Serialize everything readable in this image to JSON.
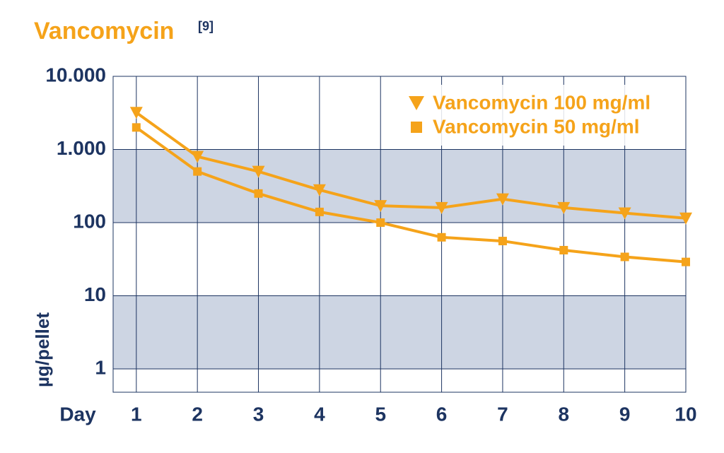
{
  "chart_data": {
    "type": "line",
    "title": "Vancomycin",
    "title_note": "[9]",
    "x_label": "Day",
    "y_label": "µg/pellet",
    "x": [
      1,
      2,
      3,
      4,
      5,
      6,
      7,
      8,
      9,
      10
    ],
    "xlim": [
      0.62,
      10
    ],
    "xticks": [
      1,
      2,
      3,
      4,
      5,
      6,
      7,
      8,
      9,
      10
    ],
    "ylim": [
      0.48,
      10000
    ],
    "y_scale": "log",
    "yticks": [
      1,
      10,
      100,
      {
        "value": 1000,
        "label": "1.000"
      },
      {
        "value": 10000,
        "label": "10.000"
      }
    ],
    "grid": true,
    "legend": "upper right",
    "series": [
      {
        "name": "Vancomycin 100 mg/ml",
        "color": "#f5a31a",
        "marker": "triangle-down",
        "values": [
          3200,
          800,
          500,
          280,
          170,
          160,
          210,
          160,
          135,
          115
        ]
      },
      {
        "name": "Vancomycin 50 mg/ml",
        "color": "#f5a31a",
        "marker": "square",
        "values": [
          2000,
          500,
          250,
          140,
          100,
          63,
          56,
          42,
          34,
          29
        ]
      }
    ]
  }
}
